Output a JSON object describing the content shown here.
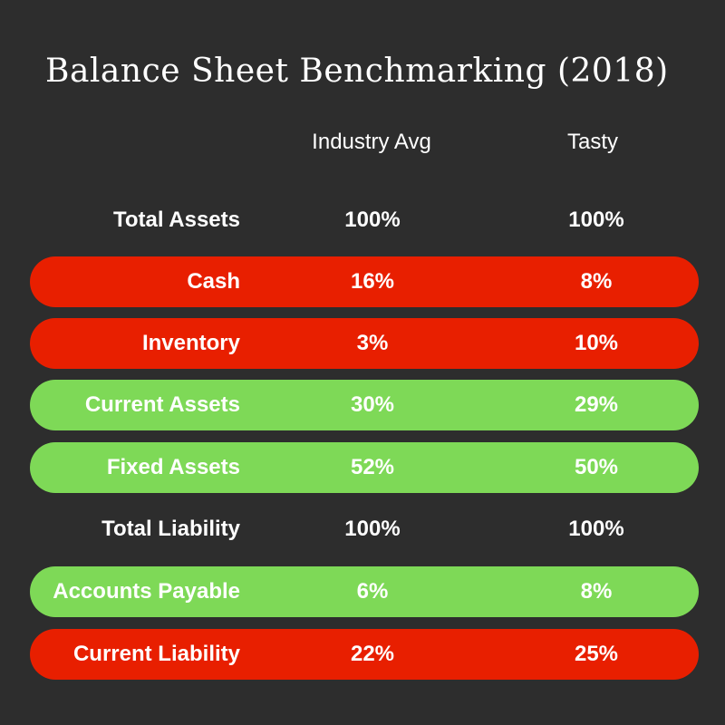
{
  "title": "Balance Sheet Benchmarking (2018)",
  "colors": {
    "background": "#2d2d2d",
    "red": "#e81f00",
    "green": "#7ed957",
    "text": "#ffffff"
  },
  "chart_data": {
    "type": "table",
    "title": "Balance Sheet Benchmarking (2018)",
    "columns": [
      "Industry Avg",
      "Tasty"
    ],
    "rows": [
      {
        "label": "Total Assets",
        "industry": "100%",
        "tasty": "100%",
        "highlight": "none"
      },
      {
        "label": "Cash",
        "industry": "16%",
        "tasty": "8%",
        "highlight": "red"
      },
      {
        "label": "Inventory",
        "industry": "3%",
        "tasty": "10%",
        "highlight": "red"
      },
      {
        "label": "Current Assets",
        "industry": "30%",
        "tasty": "29%",
        "highlight": "green"
      },
      {
        "label": "Fixed Assets",
        "industry": "52%",
        "tasty": "50%",
        "highlight": "green"
      },
      {
        "label": "Total Liability",
        "industry": "100%",
        "tasty": "100%",
        "highlight": "none"
      },
      {
        "label": "Accounts Payable",
        "industry": "6%",
        "tasty": "8%",
        "highlight": "green"
      },
      {
        "label": "Current Liability",
        "industry": "22%",
        "tasty": "25%",
        "highlight": "red"
      }
    ]
  }
}
